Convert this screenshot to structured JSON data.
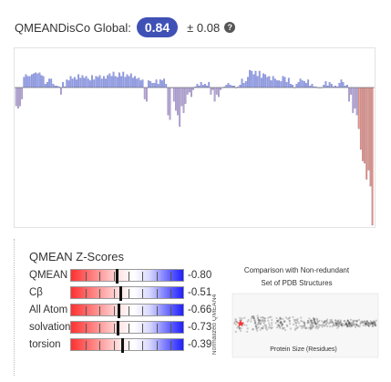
{
  "global": {
    "label": "QMEANDisCo Global:",
    "score": "0.84",
    "error": "± 0.08",
    "accent_color": "#3f51b5"
  },
  "local_plot": {
    "type": "bar",
    "baseline": 0.6,
    "ylim": [
      0,
      1
    ],
    "colors": {
      "good": "#8f9ff5",
      "mid": "#b9a4d6",
      "bad": "#f08c73"
    },
    "values": [
      0.52,
      0.51,
      0.52,
      0.55,
      0.72,
      0.75,
      0.73,
      0.73,
      0.75,
      0.76,
      0.77,
      0.76,
      0.77,
      0.74,
      0.73,
      0.64,
      0.66,
      0.7,
      0.7,
      0.64,
      0.62,
      0.62,
      0.61,
      0.57,
      0.66,
      0.61,
      0.69,
      0.68,
      0.73,
      0.7,
      0.72,
      0.69,
      0.75,
      0.71,
      0.74,
      0.71,
      0.73,
      0.7,
      0.68,
      0.74,
      0.69,
      0.73,
      0.72,
      0.74,
      0.7,
      0.73,
      0.7,
      0.74,
      0.76,
      0.73,
      0.78,
      0.73,
      0.72,
      0.77,
      0.73,
      0.78,
      0.72,
      0.75,
      0.73,
      0.76,
      0.71,
      0.73,
      0.7,
      0.71,
      0.68,
      0.69,
      0.55,
      0.54,
      0.68,
      0.67,
      0.65,
      0.65,
      0.69,
      0.64,
      0.69,
      0.68,
      0.7,
      0.64,
      0.48,
      0.46,
      0.6,
      0.54,
      0.5,
      0.48,
      0.43,
      0.52,
      0.49,
      0.53,
      0.57,
      0.58,
      0.56,
      0.59,
      0.61,
      0.64,
      0.62,
      0.66,
      0.63,
      0.64,
      0.62,
      0.66,
      0.57,
      0.59,
      0.54,
      0.57,
      0.56,
      0.59,
      0.6,
      0.61,
      0.63,
      0.65,
      0.63,
      0.62,
      0.62,
      0.6,
      0.61,
      0.63,
      0.7,
      0.65,
      0.67,
      0.72,
      0.8,
      0.79,
      0.75,
      0.79,
      0.73,
      0.79,
      0.71,
      0.76,
      0.75,
      0.72,
      0.73,
      0.68,
      0.73,
      0.7,
      0.68,
      0.68,
      0.67,
      0.73,
      0.72,
      0.66,
      0.71,
      0.64,
      0.63,
      0.6,
      0.64,
      0.66,
      0.7,
      0.68,
      0.67,
      0.65,
      0.69,
      0.62,
      0.64,
      0.61,
      0.61,
      0.6,
      0.6,
      0.6,
      0.63,
      0.67,
      0.62,
      0.66,
      0.64,
      0.61,
      0.62,
      0.61,
      0.65,
      0.69,
      0.66,
      0.62,
      0.63,
      0.54,
      0.57,
      0.49,
      0.51,
      0.48,
      0.42,
      0.33,
      0.28,
      0.27,
      0.2,
      0.24,
      0.17,
      0.0
    ]
  },
  "zscores": {
    "title": "QMEAN Z-Scores",
    "range": [
      -4,
      4
    ],
    "rows": [
      {
        "label": "QMEAN",
        "value": -0.8,
        "display": "-0.80"
      },
      {
        "label": "Cβ",
        "value": -0.51,
        "display": "-0.51"
      },
      {
        "label": "All Atom",
        "value": -0.66,
        "display": "-0.66"
      },
      {
        "label": "solvation",
        "value": -0.73,
        "display": "-0.73"
      },
      {
        "label": "torsion",
        "value": -0.39,
        "display": "-0.39"
      }
    ]
  },
  "comparison": {
    "title_line1": "Comparison with Non-redundant",
    "title_line2": "Set of PDB Structures",
    "xlabel": "Protein Size (Residues)",
    "ylabel": "Normalized QMEAN4",
    "marker_color": "#ff3030"
  }
}
